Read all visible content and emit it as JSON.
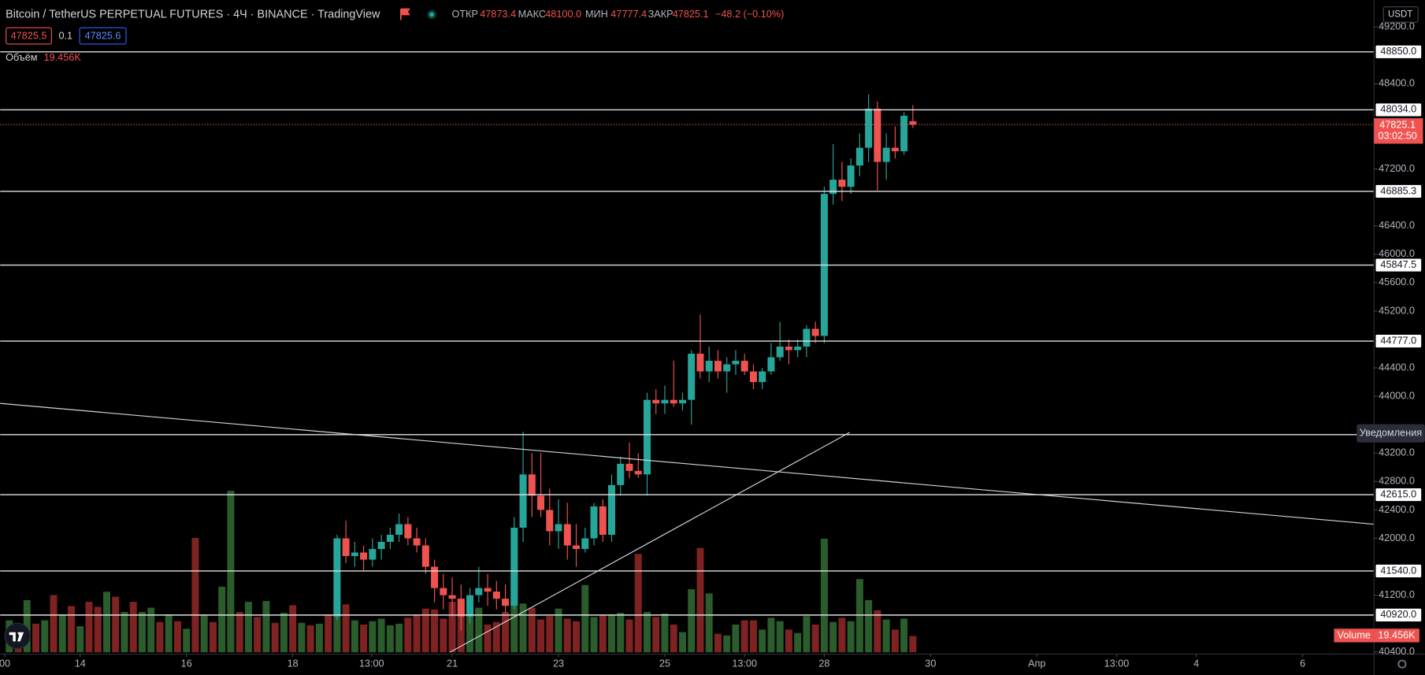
{
  "header": {
    "title": "Bitcoin / TetherUS PERPETUAL FUTURES · 4Ч · BINANCE · TradingView",
    "open_label": "ОТКР",
    "high_label": "МАКС",
    "high_value": "48100.0",
    "low_label": "МИН",
    "close_label": "ЗАКР",
    "change": "−48.2 (−0.10%)",
    "bid": "47825.5",
    "spread": "0.1",
    "ask": "47825.6",
    "volume_label": "Объём",
    "volume_value": "19.456K",
    "currency": "USDT",
    "countdown": "03:02:50",
    "alerts": "Уведомления",
    "volume_tag": "Volume"
  },
  "chart_data": {
    "type": "candlestick",
    "up_color": "#26a69a",
    "down_color": "#ef5350",
    "x": [
      0,
      1,
      2,
      3,
      4,
      5,
      6,
      7,
      8,
      9,
      10,
      11,
      12,
      13,
      14,
      15,
      16,
      17,
      18,
      19,
      20,
      21,
      22,
      23,
      24,
      25,
      26,
      27,
      28,
      29,
      30,
      31,
      32,
      33,
      34,
      35,
      36,
      37,
      38,
      39,
      40,
      41,
      42,
      43,
      44,
      45,
      46,
      47,
      48,
      49,
      50,
      51,
      52,
      53,
      54,
      55,
      56,
      57,
      58,
      59,
      60,
      61,
      62,
      63,
      64,
      65,
      66,
      67,
      68,
      69,
      70,
      71,
      72,
      73,
      74,
      75,
      76,
      77,
      78,
      79,
      80,
      81,
      82,
      83,
      84,
      85,
      86,
      87,
      88,
      89,
      90,
      91,
      92,
      93,
      94,
      95,
      96,
      97,
      98,
      99,
      100,
      101,
      102
    ],
    "open": [
      null,
      null,
      null,
      null,
      null,
      null,
      null,
      null,
      null,
      null,
      null,
      null,
      null,
      null,
      null,
      null,
      null,
      null,
      null,
      null,
      null,
      null,
      null,
      null,
      null,
      null,
      null,
      null,
      null,
      null,
      null,
      null,
      null,
      null,
      null,
      null,
      null,
      40900,
      42000,
      41750,
      41800,
      41700,
      41850,
      41950,
      42050,
      42200,
      42000,
      41900,
      41600,
      41300,
      41200,
      41150,
      40900,
      41200,
      41300,
      41250,
      41150,
      41050,
      42150,
      42900,
      42600,
      42400,
      42100,
      42200,
      41900,
      41850,
      42000,
      42450,
      42050,
      42750,
      43050,
      42950,
      42900,
      43950,
      43900,
      43950,
      43900,
      43950,
      44600,
      44350,
      44500,
      44350,
      44450,
      44500,
      44350,
      44200,
      44350,
      44550,
      44700,
      44650,
      44700,
      44950,
      44850,
      46850,
      47050,
      46950,
      47250,
      47500,
      48050,
      47300,
      47500,
      47450,
      47873.4
    ],
    "high": [
      null,
      null,
      null,
      null,
      null,
      null,
      null,
      null,
      null,
      null,
      null,
      null,
      null,
      null,
      null,
      null,
      null,
      null,
      null,
      null,
      null,
      null,
      null,
      null,
      null,
      null,
      null,
      null,
      null,
      null,
      null,
      null,
      null,
      null,
      null,
      null,
      null,
      42050,
      42250,
      41950,
      41900,
      42000,
      42050,
      42150,
      42350,
      42300,
      42150,
      42000,
      41700,
      41500,
      41450,
      41350,
      41300,
      41600,
      41500,
      41400,
      41350,
      42300,
      43500,
      43200,
      43200,
      42700,
      42550,
      42500,
      42200,
      42150,
      42500,
      42550,
      42900,
      43150,
      43350,
      43200,
      44050,
      44100,
      44150,
      44500,
      44050,
      44650,
      45150,
      44700,
      44650,
      44550,
      44650,
      44600,
      44450,
      44400,
      44750,
      45050,
      44800,
      44800,
      45000,
      45050,
      46950,
      47550,
      47300,
      47350,
      47700,
      48250,
      48150,
      47700,
      47800,
      48000,
      48100
    ],
    "low": [
      null,
      null,
      null,
      null,
      null,
      null,
      null,
      null,
      null,
      null,
      null,
      null,
      null,
      null,
      null,
      null,
      null,
      null,
      null,
      null,
      null,
      null,
      null,
      null,
      null,
      null,
      null,
      null,
      null,
      null,
      null,
      null,
      null,
      null,
      null,
      null,
      null,
      40850,
      41650,
      41600,
      41550,
      41600,
      41700,
      41850,
      41950,
      41900,
      41800,
      41500,
      41100,
      41000,
      40900,
      40700,
      40800,
      41100,
      41050,
      41000,
      40950,
      41000,
      41950,
      42300,
      42300,
      41900,
      41850,
      41700,
      41600,
      41800,
      41900,
      41950,
      41950,
      42600,
      42850,
      42850,
      42600,
      43750,
      43750,
      43850,
      43800,
      43600,
      44250,
      44200,
      44250,
      44050,
      44300,
      44300,
      44100,
      44100,
      44300,
      44500,
      44450,
      44550,
      44550,
      44750,
      44750,
      46700,
      46750,
      46850,
      47100,
      47300,
      46900,
      47050,
      47350,
      47400,
      47777.4
    ],
    "close": [
      null,
      null,
      null,
      null,
      null,
      null,
      null,
      null,
      null,
      null,
      null,
      null,
      null,
      null,
      null,
      null,
      null,
      null,
      null,
      null,
      null,
      null,
      null,
      null,
      null,
      null,
      null,
      null,
      null,
      null,
      null,
      null,
      null,
      null,
      null,
      null,
      null,
      42000,
      41750,
      41800,
      41700,
      41850,
      41950,
      42050,
      42200,
      42000,
      41900,
      41600,
      41300,
      41200,
      41150,
      40900,
      41200,
      41300,
      41250,
      41150,
      41050,
      42150,
      42900,
      42600,
      42400,
      42100,
      42200,
      41900,
      41850,
      42000,
      42450,
      42050,
      42750,
      43050,
      42950,
      42900,
      43950,
      43900,
      43950,
      43900,
      43950,
      44600,
      44350,
      44500,
      44350,
      44450,
      44500,
      44350,
      44200,
      44350,
      44550,
      44700,
      44650,
      44700,
      44950,
      44850,
      46850,
      47050,
      46950,
      47250,
      47500,
      48050,
      47300,
      47500,
      47450,
      47950,
      47825.1
    ],
    "volume": [
      38,
      30,
      62,
      34,
      38,
      68,
      45,
      55,
      31,
      60,
      54,
      72,
      66,
      48,
      60,
      48,
      53,
      36,
      45,
      37,
      28,
      136,
      45,
      36,
      78,
      192,
      48,
      60,
      42,
      61,
      35,
      47,
      56,
      35,
      32,
      34,
      44,
      58,
      57,
      38,
      33,
      37,
      40,
      32,
      34,
      41,
      44,
      52,
      51,
      40,
      60,
      62,
      45,
      53,
      33,
      36,
      48,
      98,
      58,
      53,
      39,
      43,
      52,
      40,
      37,
      80,
      42,
      44,
      45,
      47,
      39,
      117,
      48,
      42,
      46,
      33,
      24,
      75,
      124,
      70,
      22,
      20,
      33,
      38,
      38,
      27,
      41,
      37,
      27,
      23,
      43,
      33,
      135,
      36,
      41,
      37,
      87,
      62,
      50,
      39,
      27,
      40,
      19.456
    ],
    "volume_colors": [
      "#2a5c2c",
      "#7e2222",
      "#2a5c2c",
      "#7e2222",
      "#2a5c2c",
      "#7e2222",
      "#2a5c2c",
      "#7e2222",
      "#2a5c2c",
      "#7e2222",
      "#7e2222",
      "#2a5c2c",
      "#7e2222",
      "#2a5c2c",
      "#7e2222",
      "#2a5c2c",
      "#2a5c2c",
      "#7e2222",
      "#2a5c2c",
      "#7e2222",
      "#2a5c2c",
      "#7e2222",
      "#2a5c2c",
      "#7e2222",
      "#2a5c2c",
      "#2a5c2c",
      "#7e2222",
      "#2a5c2c",
      "#7e2222",
      "#2a5c2c",
      "#7e2222",
      "#2a5c2c",
      "#7e2222",
      "#2a5c2c",
      "#7e2222",
      "#2a5c2c",
      "#7e2222",
      "#2a5c2c",
      "#7e2222",
      "#2a5c2c",
      "#7e2222",
      "#2a5c2c",
      "#2a5c2c",
      "#2a5c2c",
      "#2a5c2c",
      "#7e2222",
      "#7e2222",
      "#7e2222",
      "#7e2222",
      "#7e2222",
      "#7e2222",
      "#7e2222",
      "#2a5c2c",
      "#2a5c2c",
      "#7e2222",
      "#7e2222",
      "#7e2222",
      "#2a5c2c",
      "#2a5c2c",
      "#7e2222",
      "#7e2222",
      "#7e2222",
      "#2a5c2c",
      "#7e2222",
      "#7e2222",
      "#2a5c2c",
      "#2a5c2c",
      "#7e2222",
      "#2a5c2c",
      "#2a5c2c",
      "#7e2222",
      "#7e2222",
      "#2a5c2c",
      "#7e2222",
      "#2a5c2c",
      "#7e2222",
      "#2a5c2c",
      "#2a5c2c",
      "#7e2222",
      "#2a5c2c",
      "#7e2222",
      "#2a5c2c",
      "#2a5c2c",
      "#7e2222",
      "#7e2222",
      "#2a5c2c",
      "#2a5c2c",
      "#2a5c2c",
      "#7e2222",
      "#2a5c2c",
      "#2a5c2c",
      "#7e2222",
      "#2a5c2c",
      "#2a5c2c",
      "#7e2222",
      "#2a5c2c",
      "#2a5c2c",
      "#2a5c2c",
      "#7e2222",
      "#2a5c2c",
      "#7e2222",
      "#2a5c2c",
      "#7e2222"
    ],
    "xlim": [
      -1.03,
      154.05
    ],
    "xticks": [
      {
        "value": -0.51,
        "label": "00"
      },
      {
        "value": 8,
        "label": "14"
      },
      {
        "value": 20,
        "label": "16"
      },
      {
        "value": 32,
        "label": "18"
      },
      {
        "value": 40.9,
        "label": "13:00"
      },
      {
        "value": 50,
        "label": "21"
      },
      {
        "value": 62,
        "label": "23"
      },
      {
        "value": 74,
        "label": "25"
      },
      {
        "value": 83,
        "label": "13:00"
      },
      {
        "value": 92,
        "label": "28"
      },
      {
        "value": 104,
        "label": "30"
      },
      {
        "value": 116,
        "label": "Апр"
      },
      {
        "value": 125,
        "label": "13:00"
      },
      {
        "value": 134,
        "label": "4"
      },
      {
        "value": 146,
        "label": "6"
      }
    ],
    "ylim": [
      40370,
      49580
    ],
    "yticks": [
      {
        "value": 49200,
        "label": "49200.0"
      },
      {
        "value": 48400,
        "label": "48400.0"
      },
      {
        "value": 47200,
        "label": "47200.0"
      },
      {
        "value": 46400,
        "label": "46400.0"
      },
      {
        "value": 46000,
        "label": "46000.0"
      },
      {
        "value": 45600,
        "label": "45600.0"
      },
      {
        "value": 45200,
        "label": "45200.0"
      },
      {
        "value": 44400,
        "label": "44400.0"
      },
      {
        "value": 44000,
        "label": "44000.0"
      },
      {
        "value": 43200,
        "label": "43200.0"
      },
      {
        "value": 42800,
        "label": "42800.0"
      },
      {
        "value": 42400,
        "label": "42400.0"
      },
      {
        "value": 42000,
        "label": "42000.0"
      },
      {
        "value": 41200,
        "label": "41200.0"
      },
      {
        "value": 40400,
        "label": "40400.0"
      }
    ],
    "levels": [
      {
        "value": 48850,
        "label": "48850.0"
      },
      {
        "value": 48034,
        "label": "48034.0"
      },
      {
        "value": 46885.3,
        "label": "46885.3"
      },
      {
        "value": 45847.5,
        "label": "45847.5"
      },
      {
        "value": 44777,
        "label": "44777.0"
      },
      {
        "value": 43460
      },
      {
        "value": 42615,
        "label": "42615.0"
      },
      {
        "value": 41540,
        "label": "41540.0"
      },
      {
        "value": 40920,
        "label": "40920.0"
      }
    ]
  }
}
